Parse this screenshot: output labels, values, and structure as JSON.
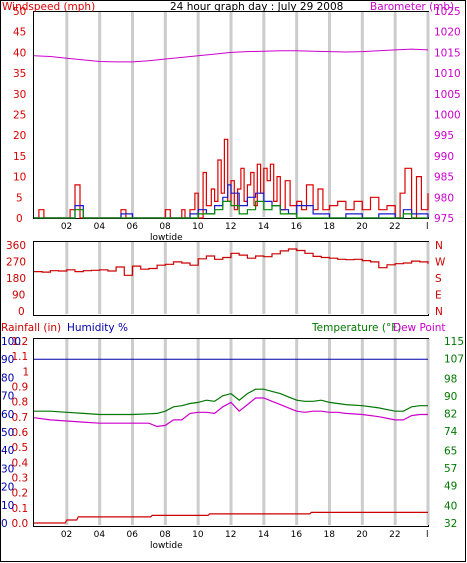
{
  "colors": {
    "wind": "#dd0000",
    "gust": "#1a1acc",
    "avg": "#008800",
    "baro": "#cc00cc",
    "dir": "#cc0000",
    "hum": "#0000aa",
    "temp": "#007700",
    "dew": "#cc00cc",
    "rain": "#cc0000",
    "grid": "#cccccc",
    "frame": "#000000"
  },
  "chart_data": [
    {
      "type": "line",
      "title": "24 hour graph day : July 29 2008",
      "y_left_label": "Windspeed (mph)",
      "y_right_label": "Barometer (mb)",
      "x_ticks": [
        "02",
        "04",
        "06",
        "08",
        "10",
        "12",
        "14",
        "16",
        "18",
        "20",
        "22",
        "l"
      ],
      "x_marker": {
        "label": "lowtide",
        "hour": 8.9
      },
      "y_left_ticks": [
        "0",
        "5",
        "10",
        "15",
        "20",
        "25",
        "30",
        "35",
        "40",
        "45",
        "50"
      ],
      "y_right_ticks": [
        "975",
        "980",
        "985",
        "990",
        "995",
        "1000",
        "1005",
        "1010",
        "1015",
        "1020",
        "1025"
      ],
      "ylim_left": [
        0,
        50
      ],
      "ylim_right": [
        975,
        1025
      ],
      "series": [
        {
          "name": "Barometer",
          "axis": "right",
          "x": [
            0,
            1,
            2,
            3,
            4,
            5,
            6,
            7,
            8,
            9,
            10,
            11,
            12,
            13,
            14,
            15,
            16,
            17,
            18,
            19,
            20,
            21,
            22,
            23,
            24
          ],
          "y": [
            1014.2,
            1014.0,
            1013.6,
            1013.2,
            1012.8,
            1012.7,
            1012.7,
            1013.0,
            1013.4,
            1013.8,
            1014.2,
            1014.6,
            1015.0,
            1015.2,
            1015.3,
            1015.4,
            1015.4,
            1015.3,
            1015.2,
            1015.1,
            1015.2,
            1015.4,
            1015.6,
            1015.8,
            1015.6
          ]
        },
        {
          "name": "Wind gust",
          "axis": "left",
          "x": [
            0,
            0.3,
            0.6,
            1,
            1.5,
            2,
            2.2,
            2.5,
            2.8,
            3,
            3.5,
            4,
            4.5,
            5,
            5.3,
            5.6,
            6,
            6.5,
            7,
            7.5,
            8,
            8.3,
            8.6,
            9,
            9.2,
            9.5,
            9.8,
            10,
            10.3,
            10.5,
            10.8,
            11,
            11.2,
            11.4,
            11.6,
            11.8,
            12,
            12.2,
            12.4,
            12.6,
            12.8,
            13,
            13.2,
            13.4,
            13.6,
            13.8,
            14,
            14.2,
            14.4,
            14.6,
            14.8,
            15,
            15.3,
            15.6,
            16,
            16.3,
            16.6,
            17,
            17.3,
            17.6,
            18,
            18.5,
            19,
            19.5,
            20,
            20.5,
            21,
            21.5,
            22,
            22.3,
            22.6,
            23,
            23.3,
            23.6,
            24
          ],
          "y": [
            0,
            2,
            0,
            0,
            0,
            0,
            2,
            8,
            0,
            0,
            0,
            0,
            0,
            0,
            2,
            0,
            0,
            0,
            0,
            0,
            2,
            0,
            0,
            2,
            0,
            2,
            6,
            0,
            11,
            3,
            7,
            4,
            14,
            6,
            19,
            4,
            9,
            2,
            7,
            12,
            4,
            8,
            11,
            3,
            13,
            6,
            12,
            9,
            13,
            4,
            10,
            2,
            9,
            3,
            4,
            2,
            8,
            2,
            7,
            2,
            3,
            4,
            2,
            4,
            2,
            5,
            2,
            3,
            0,
            6,
            12,
            0,
            10,
            2,
            6
          ]
        },
        {
          "name": "Wind speed",
          "axis": "left",
          "x": [
            0,
            2,
            2.5,
            3,
            4,
            5,
            5.3,
            6,
            8,
            9,
            9.5,
            10,
            10.5,
            11,
            11.5,
            11.8,
            12,
            12.5,
            13,
            13.5,
            14,
            14.5,
            15,
            15.5,
            16,
            17,
            18,
            19,
            20,
            21,
            22,
            22.5,
            23,
            23.5,
            24
          ],
          "y": [
            0,
            0,
            3,
            0,
            0,
            0,
            1,
            0,
            0,
            0,
            1,
            2,
            1,
            3,
            5,
            8,
            6,
            3,
            5,
            6,
            4,
            3,
            2,
            1,
            3,
            1,
            0,
            1,
            0,
            1,
            0,
            2,
            1,
            1,
            0
          ]
        },
        {
          "name": "Average wind",
          "axis": "left",
          "x": [
            0,
            2,
            2.5,
            3,
            8,
            9,
            10,
            11,
            11.5,
            12,
            12.5,
            13,
            13.5,
            14,
            14.5,
            15,
            16,
            17,
            22,
            22.5,
            23,
            24
          ],
          "y": [
            0,
            0,
            2,
            0,
            0,
            0,
            1,
            2,
            4,
            3,
            1,
            2,
            4,
            2,
            3,
            1,
            0,
            0,
            0,
            1,
            0,
            0
          ]
        }
      ]
    },
    {
      "type": "line",
      "y_left_ticks": [
        "0",
        "90",
        "180",
        "270",
        "360"
      ],
      "y_right_ticks": [
        "N",
        "E",
        "S",
        "W",
        "N"
      ],
      "ylim_left": [
        0,
        360
      ],
      "series": [
        {
          "name": "Wind direction",
          "x": [
            0,
            0.5,
            1,
            1.5,
            2,
            2.5,
            3,
            3.5,
            4,
            4.5,
            5,
            5.5,
            6,
            6.5,
            7,
            7.5,
            8,
            8.5,
            9,
            9.5,
            10,
            10.5,
            11,
            11.5,
            12,
            12.5,
            13,
            13.5,
            14,
            14.5,
            15,
            15.5,
            16,
            16.5,
            17,
            17.5,
            18,
            18.5,
            19,
            19.5,
            20,
            20.5,
            21,
            21.5,
            22,
            22.5,
            23,
            23.5,
            24
          ],
          "y": [
            215,
            212,
            220,
            218,
            225,
            215,
            220,
            222,
            225,
            218,
            240,
            195,
            245,
            228,
            232,
            250,
            255,
            268,
            262,
            250,
            285,
            300,
            282,
            292,
            315,
            305,
            288,
            300,
            296,
            312,
            328,
            338,
            330,
            315,
            298,
            292,
            288,
            282,
            280,
            282,
            275,
            268,
            236,
            252,
            258,
            262,
            272,
            268,
            258
          ]
        }
      ]
    },
    {
      "type": "line",
      "y_left_label": "Rainfall (in)",
      "y_humidity_label": "Humidity %",
      "y_right_label": "Temperature (°F)",
      "y_right_label2": "Dew Point",
      "x_ticks": [
        "02",
        "04",
        "06",
        "08",
        "10",
        "12",
        "14",
        "16",
        "18",
        "20",
        "22",
        "l"
      ],
      "x_marker": {
        "label": "lowtide",
        "hour": 8.9
      },
      "y_rain_ticks": [
        "0.0",
        "0.1",
        "0.2",
        "0.3",
        "0.4",
        "0.5",
        "0.6",
        "0.7",
        "0.8",
        "0.9",
        "1",
        "1.1",
        "1.2"
      ],
      "y_hum_ticks": [
        "0",
        "10",
        "20",
        "30",
        "40",
        "50",
        "60",
        "70",
        "80",
        "90",
        "100"
      ],
      "y_temp_ticks": [
        "32",
        "40",
        "49",
        "57",
        "65",
        "74",
        "82",
        "90",
        "98",
        "107",
        "115"
      ],
      "ylim_temp": [
        32,
        115
      ],
      "ylim_rain": [
        0,
        1.2
      ],
      "series": [
        {
          "name": "Humidity",
          "x": [
            0,
            24
          ],
          "y": [
            90,
            90
          ]
        },
        {
          "name": "Temperature",
          "x": [
            0,
            1,
            2,
            3,
            4,
            5,
            6,
            7,
            7.5,
            8,
            8.5,
            9,
            9.5,
            10,
            10.5,
            11,
            11.5,
            12,
            12.5,
            13,
            13.5,
            14,
            14.5,
            15,
            15.5,
            16,
            16.5,
            17,
            17.5,
            18,
            18.5,
            19,
            20,
            21,
            22,
            22.5,
            23,
            23.5,
            24
          ],
          "y": [
            83,
            83,
            82.5,
            82,
            81.5,
            81.5,
            81.5,
            81.8,
            82,
            83,
            85,
            85.5,
            86.5,
            87,
            88,
            87.5,
            90,
            91,
            88,
            91,
            93,
            93,
            92,
            91,
            89.5,
            88,
            87.5,
            87.5,
            88,
            87,
            86.5,
            86,
            85.5,
            84.5,
            83,
            83,
            85,
            85.5,
            85.5
          ]
        },
        {
          "name": "Dew Point",
          "x": [
            0,
            1,
            2,
            3,
            4,
            5,
            6,
            7,
            7.5,
            8,
            8.5,
            9,
            9.5,
            10,
            10.5,
            11,
            11.5,
            12,
            12.5,
            13,
            13.5,
            14,
            14.5,
            15,
            15.5,
            16,
            16.5,
            17,
            17.5,
            18,
            18.5,
            19,
            20,
            21,
            22,
            22.5,
            23,
            23.5,
            24
          ],
          "y": [
            80,
            79,
            78.5,
            78,
            77.5,
            77.5,
            77.5,
            77.5,
            76,
            76.5,
            79,
            79,
            82,
            82.5,
            82.5,
            82,
            85,
            87,
            83,
            86,
            89,
            89,
            87.5,
            86,
            84.5,
            83,
            82.5,
            83,
            83,
            82.5,
            82.5,
            82,
            81.5,
            80.5,
            79,
            79,
            81,
            81.5,
            81.5
          ]
        },
        {
          "name": "Rainfall",
          "x": [
            0,
            1.9,
            2.0,
            2.6,
            2.7,
            7.1,
            7.2,
            10.6,
            10.7,
            16.8,
            16.9,
            24
          ],
          "y": [
            0,
            0,
            0.02,
            0.02,
            0.04,
            0.04,
            0.05,
            0.05,
            0.06,
            0.06,
            0.07,
            0.07
          ]
        }
      ]
    }
  ]
}
